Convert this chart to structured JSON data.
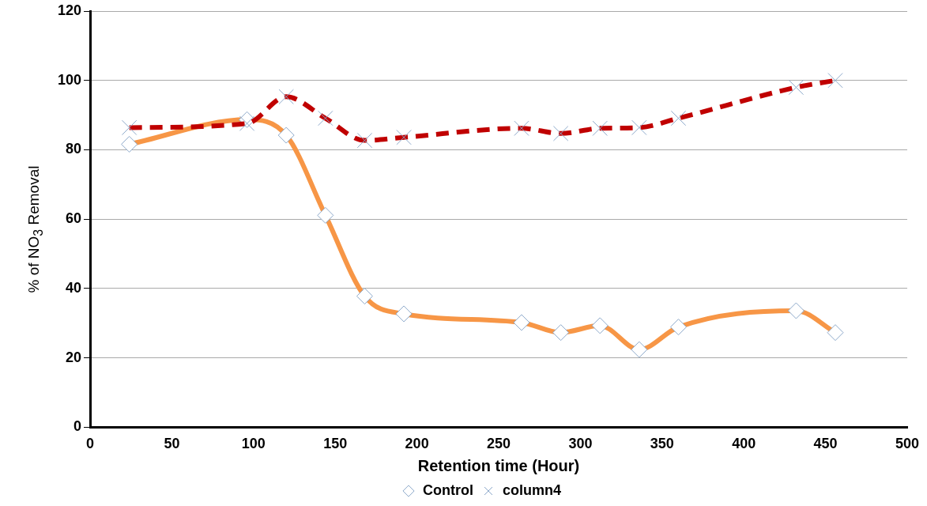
{
  "chart_data": {
    "type": "line",
    "xlabel": "Retention time (Hour)",
    "ylabel": "% of NO$_{3}$ Removal",
    "x": [
      24,
      96,
      120,
      144,
      168,
      192,
      264,
      288,
      312,
      336,
      360,
      432,
      456
    ],
    "series": [
      {
        "name": "Control",
        "color": "#f79646",
        "marker": "diamond",
        "line_style": "solid",
        "values": [
          81.6,
          88.7,
          84.2,
          61.1,
          37.8,
          32.7,
          30.2,
          27.3,
          29.3,
          22.4,
          28.9,
          33.6,
          27.3
        ]
      },
      {
        "name": "column4",
        "color": "#c00000",
        "marker": "cross",
        "line_style": "dashed",
        "values": [
          86.4,
          87.6,
          95.3,
          89.1,
          82.7,
          83.6,
          86.2,
          84.7,
          86.2,
          86.4,
          89.1,
          98,
          100
        ]
      }
    ],
    "xlim": [
      0,
      500
    ],
    "xticks": [
      0,
      50,
      100,
      150,
      200,
      250,
      300,
      350,
      400,
      450,
      500
    ],
    "ylim": [
      0,
      120
    ],
    "yticks": [
      0,
      20,
      40,
      60,
      80,
      100,
      120
    ],
    "grid": "y",
    "legend": "bottom"
  }
}
